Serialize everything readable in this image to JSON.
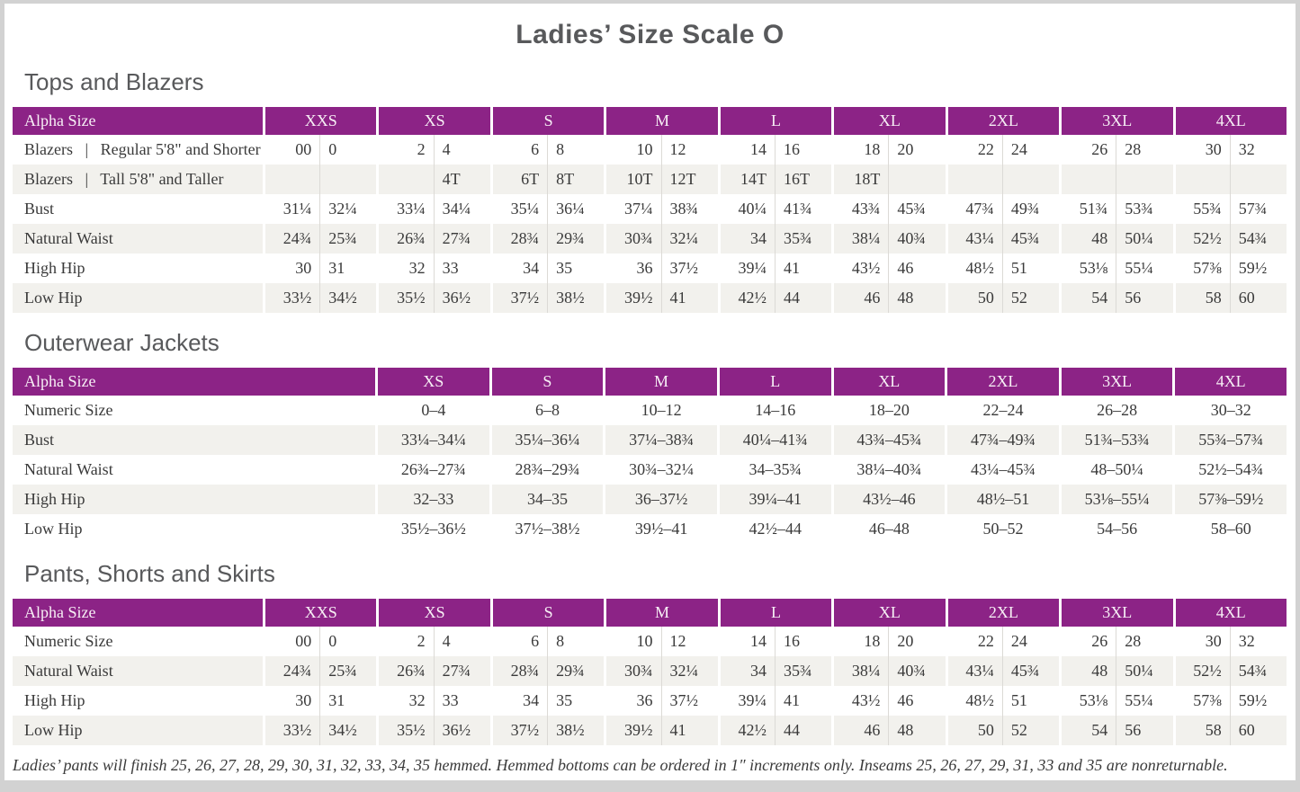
{
  "title": "Ladies’ Size Scale O",
  "colors": {
    "accent": "#8C2386",
    "stripe": "#F2F1ED",
    "frame": "#D2D2D2",
    "heading_text": "#58595B",
    "table_text": "#3A3A3A",
    "divider": "#DCDAD6",
    "header_text": "#F7EFF5"
  },
  "sections": [
    {
      "heading": "Tops and Blazers",
      "table": {
        "type": "paired",
        "corner_label": "Alpha Size",
        "sizes": [
          "XXS",
          "XS",
          "S",
          "M",
          "L",
          "XL",
          "2XL",
          "3XL",
          "4XL"
        ],
        "rows": [
          {
            "label": "Blazers  |  Regular 5'8\" and Shorter",
            "values": [
              [
                "00",
                "0"
              ],
              [
                "2",
                "4"
              ],
              [
                "6",
                "8"
              ],
              [
                "10",
                "12"
              ],
              [
                "14",
                "16"
              ],
              [
                "18",
                "20"
              ],
              [
                "22",
                "24"
              ],
              [
                "26",
                "28"
              ],
              [
                "30",
                "32"
              ]
            ]
          },
          {
            "label": "Blazers  |  Tall 5'8\" and Taller",
            "values": [
              [
                "",
                ""
              ],
              [
                "",
                "4T"
              ],
              [
                "6T",
                "8T"
              ],
              [
                "10T",
                "12T"
              ],
              [
                "14T",
                "16T"
              ],
              [
                "18T",
                ""
              ],
              [
                "",
                ""
              ],
              [
                "",
                ""
              ],
              [
                "",
                ""
              ]
            ]
          },
          {
            "label": "Bust",
            "values": [
              [
                "31¼",
                "32¼"
              ],
              [
                "33¼",
                "34¼"
              ],
              [
                "35¼",
                "36¼"
              ],
              [
                "37¼",
                "38¾"
              ],
              [
                "40¼",
                "41¾"
              ],
              [
                "43¾",
                "45¾"
              ],
              [
                "47¾",
                "49¾"
              ],
              [
                "51¾",
                "53¾"
              ],
              [
                "55¾",
                "57¾"
              ]
            ]
          },
          {
            "label": "Natural Waist",
            "values": [
              [
                "24¾",
                "25¾"
              ],
              [
                "26¾",
                "27¾"
              ],
              [
                "28¾",
                "29¾"
              ],
              [
                "30¾",
                "32¼"
              ],
              [
                "34",
                "35¾"
              ],
              [
                "38¼",
                "40¾"
              ],
              [
                "43¼",
                "45¾"
              ],
              [
                "48",
                "50¼"
              ],
              [
                "52½",
                "54¾"
              ]
            ]
          },
          {
            "label": "High Hip",
            "values": [
              [
                "30",
                "31"
              ],
              [
                "32",
                "33"
              ],
              [
                "34",
                "35"
              ],
              [
                "36",
                "37½"
              ],
              [
                "39¼",
                "41"
              ],
              [
                "43½",
                "46"
              ],
              [
                "48½",
                "51"
              ],
              [
                "53⅛",
                "55¼"
              ],
              [
                "57⅜",
                "59½"
              ]
            ]
          },
          {
            "label": "Low Hip",
            "values": [
              [
                "33½",
                "34½"
              ],
              [
                "35½",
                "36½"
              ],
              [
                "37½",
                "38½"
              ],
              [
                "39½",
                "41"
              ],
              [
                "42½",
                "44"
              ],
              [
                "46",
                "48"
              ],
              [
                "50",
                "52"
              ],
              [
                "54",
                "56"
              ],
              [
                "58",
                "60"
              ]
            ]
          }
        ]
      }
    },
    {
      "heading": "Outerwear Jackets",
      "table": {
        "type": "range",
        "corner_label": "Alpha Size",
        "sizes": [
          "XS",
          "S",
          "M",
          "L",
          "XL",
          "2XL",
          "3XL",
          "4XL"
        ],
        "rows": [
          {
            "label": "Numeric Size",
            "values": [
              "0–4",
              "6–8",
              "10–12",
              "14–16",
              "18–20",
              "22–24",
              "26–28",
              "30–32"
            ]
          },
          {
            "label": "Bust",
            "values": [
              "33¼–34¼",
              "35¼–36¼",
              "37¼–38¾",
              "40¼–41¾",
              "43¾–45¾",
              "47¾–49¾",
              "51¾–53¾",
              "55¾–57¾"
            ]
          },
          {
            "label": "Natural Waist",
            "values": [
              "26¾–27¾",
              "28¾–29¾",
              "30¾–32¼",
              "34–35¾",
              "38¼–40¾",
              "43¼–45¾",
              "48–50¼",
              "52½–54¾"
            ]
          },
          {
            "label": "High Hip",
            "values": [
              "32–33",
              "34–35",
              "36–37½",
              "39¼–41",
              "43½–46",
              "48½–51",
              "53⅛–55¼",
              "57⅜–59½"
            ]
          },
          {
            "label": "Low Hip",
            "values": [
              "35½–36½",
              "37½–38½",
              "39½–41",
              "42½–44",
              "46–48",
              "50–52",
              "54–56",
              "58–60"
            ]
          }
        ]
      }
    },
    {
      "heading": "Pants, Shorts and Skirts",
      "table": {
        "type": "paired",
        "corner_label": "Alpha Size",
        "sizes": [
          "XXS",
          "XS",
          "S",
          "M",
          "L",
          "XL",
          "2XL",
          "3XL",
          "4XL"
        ],
        "rows": [
          {
            "label": "Numeric Size",
            "values": [
              [
                "00",
                "0"
              ],
              [
                "2",
                "4"
              ],
              [
                "6",
                "8"
              ],
              [
                "10",
                "12"
              ],
              [
                "14",
                "16"
              ],
              [
                "18",
                "20"
              ],
              [
                "22",
                "24"
              ],
              [
                "26",
                "28"
              ],
              [
                "30",
                "32"
              ]
            ]
          },
          {
            "label": "Natural Waist",
            "values": [
              [
                "24¾",
                "25¾"
              ],
              [
                "26¾",
                "27¾"
              ],
              [
                "28¾",
                "29¾"
              ],
              [
                "30¾",
                "32¼"
              ],
              [
                "34",
                "35¾"
              ],
              [
                "38¼",
                "40¾"
              ],
              [
                "43¼",
                "45¾"
              ],
              [
                "48",
                "50¼"
              ],
              [
                "52½",
                "54¾"
              ]
            ]
          },
          {
            "label": "High Hip",
            "values": [
              [
                "30",
                "31"
              ],
              [
                "32",
                "33"
              ],
              [
                "34",
                "35"
              ],
              [
                "36",
                "37½"
              ],
              [
                "39¼",
                "41"
              ],
              [
                "43½",
                "46"
              ],
              [
                "48½",
                "51"
              ],
              [
                "53⅛",
                "55¼"
              ],
              [
                "57⅜",
                "59½"
              ]
            ]
          },
          {
            "label": "Low Hip",
            "values": [
              [
                "33½",
                "34½"
              ],
              [
                "35½",
                "36½"
              ],
              [
                "37½",
                "38½"
              ],
              [
                "39½",
                "41"
              ],
              [
                "42½",
                "44"
              ],
              [
                "46",
                "48"
              ],
              [
                "50",
                "52"
              ],
              [
                "54",
                "56"
              ],
              [
                "58",
                "60"
              ]
            ]
          }
        ]
      }
    }
  ],
  "footnote": "Ladies’ pants will finish 25, 26, 27, 28, 29, 30, 31, 32, 33, 34, 35 hemmed. Hemmed bottoms can be ordered in 1″ increments only. Inseams 25, 26, 27, 29, 31, 33 and 35 are nonreturnable."
}
